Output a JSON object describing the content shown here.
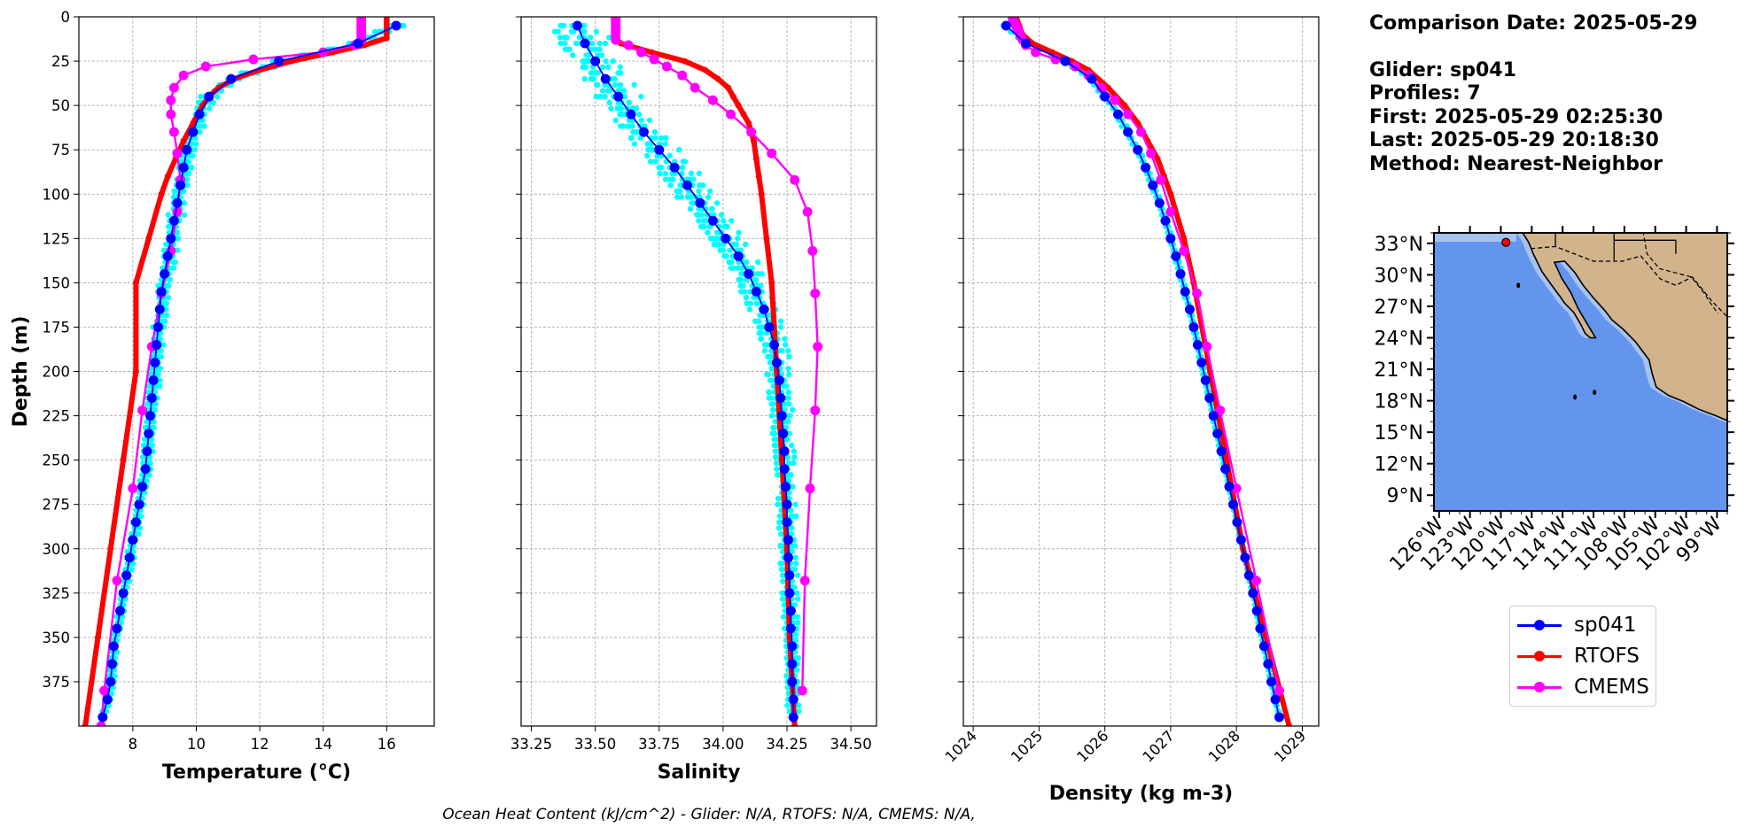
{
  "info": {
    "comparison_date": "Comparison Date: 2025-05-29",
    "glider": "Glider: sp041",
    "profiles": "Profiles: 7",
    "first": "First: 2025-05-29 02:25:30",
    "last": "Last: 2025-05-29 20:18:30",
    "method": "Method: Nearest-Neighbor"
  },
  "footer": "Ocean Heat Content (kJ/cm^2) - Glider: N/A,  RTOFS: N/A,  CMEMS: N/A,",
  "colors": {
    "glider": "#0000ff",
    "glider_profiles": "#00ffff",
    "rtofs": "#ff0000",
    "cmems": "#ff00ff",
    "ocean": "#6495ed",
    "land": "#d2b48c",
    "shelf": "#a6c3f0"
  },
  "legend": [
    {
      "label": "sp041",
      "color": "#0000ff"
    },
    {
      "label": "RTOFS",
      "color": "#ff0000"
    },
    {
      "label": "CMEMS",
      "color": "#ff00ff"
    }
  ],
  "chart_data": [
    {
      "type": "line",
      "xlabel": "Temperature ($^{o}C$)",
      "xlabel_display": "Temperature (°C)",
      "ylabel": "Depth (m)",
      "xlim": [
        6.3,
        17.5
      ],
      "ylim": [
        400,
        0
      ],
      "xticks": [
        8,
        10,
        12,
        14,
        16
      ],
      "yticks": [
        0,
        25,
        50,
        75,
        100,
        125,
        150,
        175,
        200,
        225,
        250,
        275,
        300,
        325,
        350,
        375
      ],
      "grid": true,
      "series": [
        {
          "name": "sp041",
          "depth": [
            5,
            15,
            25,
            35,
            45,
            55,
            65,
            75,
            85,
            95,
            105,
            115,
            125,
            135,
            145,
            155,
            165,
            175,
            185,
            195,
            205,
            215,
            225,
            235,
            245,
            255,
            265,
            275,
            285,
            295,
            305,
            315,
            325,
            335,
            345,
            355,
            365,
            375,
            385,
            395
          ],
          "values": [
            16.3,
            15.1,
            12.6,
            11.1,
            10.4,
            10.1,
            9.9,
            9.7,
            9.6,
            9.5,
            9.4,
            9.3,
            9.2,
            9.1,
            9.0,
            8.9,
            8.85,
            8.8,
            8.75,
            8.7,
            8.65,
            8.6,
            8.55,
            8.5,
            8.45,
            8.4,
            8.3,
            8.2,
            8.1,
            8.0,
            7.9,
            7.8,
            7.7,
            7.6,
            7.5,
            7.4,
            7.35,
            7.3,
            7.2,
            7.05
          ]
        },
        {
          "name": "RTOFS",
          "depth": [
            0,
            2,
            4,
            6,
            8,
            10,
            12,
            16,
            20,
            25,
            30,
            35,
            40,
            45,
            50,
            60,
            70,
            80,
            90,
            100,
            125,
            150,
            200,
            250,
            300,
            350,
            400
          ],
          "values": [
            16.0,
            16.0,
            16.0,
            16.0,
            16.0,
            16.0,
            16.0,
            15.3,
            14.3,
            13.0,
            12.0,
            11.2,
            10.7,
            10.4,
            10.2,
            9.9,
            9.6,
            9.35,
            9.1,
            8.9,
            8.5,
            8.1,
            8.1,
            7.7,
            7.3,
            6.9,
            6.5
          ]
        },
        {
          "name": "CMEMS",
          "depth": [
            1,
            3,
            5,
            7,
            9,
            11,
            13,
            16,
            20,
            24,
            28,
            33,
            40,
            47,
            55,
            65,
            77,
            92,
            110,
            132,
            156,
            186,
            222,
            266,
            318,
            380,
            400
          ],
          "values": [
            15.2,
            15.2,
            15.2,
            15.2,
            15.2,
            15.2,
            15.2,
            15.0,
            14.0,
            11.8,
            10.3,
            9.6,
            9.3,
            9.2,
            9.2,
            9.3,
            9.4,
            9.5,
            9.4,
            9.2,
            8.9,
            8.6,
            8.3,
            8.0,
            7.5,
            7.1,
            7.0
          ]
        }
      ]
    },
    {
      "type": "line",
      "xlabel": "Salinity",
      "xlim": [
        33.21,
        34.6
      ],
      "ylim": [
        400,
        0
      ],
      "xticks": [
        33.25,
        33.5,
        33.75,
        34.0,
        34.25,
        34.5
      ],
      "xtick_labels": [
        "33.25",
        "33.50",
        "33.75",
        "34.00",
        "34.25",
        "34.50"
      ],
      "grid": true,
      "series": [
        {
          "name": "sp041",
          "depth": [
            5,
            15,
            25,
            35,
            45,
            55,
            65,
            75,
            85,
            95,
            105,
            115,
            125,
            135,
            145,
            155,
            165,
            175,
            185,
            195,
            205,
            215,
            225,
            235,
            245,
            255,
            265,
            275,
            285,
            295,
            305,
            315,
            325,
            335,
            345,
            355,
            365,
            375,
            385,
            395
          ],
          "values": [
            33.43,
            33.46,
            33.5,
            33.54,
            33.59,
            33.64,
            33.69,
            33.75,
            33.81,
            33.86,
            33.91,
            33.96,
            34.01,
            34.06,
            34.1,
            34.13,
            34.16,
            34.18,
            34.2,
            34.21,
            34.22,
            34.225,
            34.23,
            34.235,
            34.24,
            34.24,
            34.245,
            34.25,
            34.25,
            34.255,
            34.255,
            34.26,
            34.26,
            34.265,
            34.265,
            34.27,
            34.27,
            34.27,
            34.275,
            34.275
          ]
        },
        {
          "name": "RTOFS",
          "depth": [
            0,
            2,
            4,
            6,
            8,
            10,
            12,
            15,
            20,
            25,
            30,
            35,
            40,
            45,
            50,
            55,
            60,
            70,
            80,
            90,
            100,
            125,
            150,
            200,
            250,
            300,
            350,
            400
          ],
          "values": [
            33.58,
            33.58,
            33.58,
            33.58,
            33.58,
            33.58,
            33.58,
            33.6,
            33.72,
            33.85,
            33.93,
            33.98,
            34.02,
            34.04,
            34.06,
            34.08,
            34.1,
            34.12,
            34.13,
            34.14,
            34.15,
            34.17,
            34.19,
            34.21,
            34.23,
            34.25,
            34.26,
            34.28
          ]
        },
        {
          "name": "CMEMS",
          "depth": [
            1,
            3,
            5,
            7,
            9,
            11,
            13,
            16,
            20,
            24,
            28,
            33,
            40,
            47,
            55,
            65,
            77,
            92,
            110,
            132,
            156,
            186,
            222,
            266,
            318,
            380
          ],
          "values": [
            33.58,
            33.58,
            33.58,
            33.58,
            33.58,
            33.58,
            33.58,
            33.63,
            33.68,
            33.73,
            33.78,
            33.84,
            33.89,
            33.96,
            34.03,
            34.11,
            34.19,
            34.28,
            34.33,
            34.35,
            34.36,
            34.37,
            34.36,
            34.34,
            34.32,
            34.31
          ]
        }
      ]
    },
    {
      "type": "line",
      "xlabel": "Density (kg m-3)",
      "xlim": [
        1023.85,
        1029.25
      ],
      "ylim": [
        400,
        0
      ],
      "xticks": [
        1024,
        1025,
        1026,
        1027,
        1028,
        1029
      ],
      "grid": true,
      "series": [
        {
          "name": "sp041",
          "depth": [
            5,
            15,
            25,
            35,
            45,
            55,
            65,
            75,
            85,
            95,
            105,
            115,
            125,
            135,
            145,
            155,
            165,
            175,
            185,
            195,
            205,
            215,
            225,
            235,
            245,
            255,
            265,
            275,
            285,
            295,
            305,
            315,
            325,
            335,
            345,
            355,
            365,
            375,
            385,
            395
          ],
          "values": [
            1024.5,
            1024.8,
            1025.4,
            1025.8,
            1026.0,
            1026.2,
            1026.35,
            1026.5,
            1026.62,
            1026.73,
            1026.83,
            1026.92,
            1027.0,
            1027.08,
            1027.15,
            1027.22,
            1027.29,
            1027.35,
            1027.41,
            1027.47,
            1027.53,
            1027.59,
            1027.65,
            1027.71,
            1027.77,
            1027.83,
            1027.89,
            1027.95,
            1028.01,
            1028.07,
            1028.13,
            1028.19,
            1028.25,
            1028.31,
            1028.36,
            1028.42,
            1028.48,
            1028.53,
            1028.59,
            1028.65
          ]
        },
        {
          "name": "RTOFS",
          "depth": [
            0,
            5,
            10,
            15,
            20,
            25,
            30,
            40,
            50,
            60,
            70,
            80,
            90,
            100,
            125,
            150,
            200,
            250,
            300,
            350,
            400
          ],
          "values": [
            1024.65,
            1024.7,
            1024.75,
            1024.9,
            1025.2,
            1025.5,
            1025.75,
            1026.05,
            1026.3,
            1026.5,
            1026.65,
            1026.8,
            1026.9,
            1027.0,
            1027.2,
            1027.35,
            1027.6,
            1027.85,
            1028.1,
            1028.45,
            1028.8
          ]
        },
        {
          "name": "CMEMS",
          "depth": [
            1,
            3,
            5,
            7,
            9,
            11,
            13,
            16,
            20,
            24,
            28,
            33,
            40,
            47,
            55,
            65,
            77,
            92,
            110,
            132,
            156,
            186,
            222,
            266,
            318,
            380
          ],
          "values": [
            1024.6,
            1024.62,
            1024.65,
            1024.68,
            1024.7,
            1024.72,
            1024.75,
            1024.8,
            1024.95,
            1025.25,
            1025.55,
            1025.75,
            1025.95,
            1026.15,
            1026.35,
            1026.55,
            1026.7,
            1026.85,
            1027.0,
            1027.2,
            1027.4,
            1027.55,
            1027.75,
            1028.0,
            1028.3,
            1028.65
          ]
        }
      ]
    },
    {
      "type": "map",
      "lat_ticks": [
        "33°N",
        "30°N",
        "27°N",
        "24°N",
        "21°N",
        "18°N",
        "15°N",
        "12°N",
        "9°N"
      ],
      "lon_ticks": [
        "126°W",
        "123°W",
        "120°W",
        "117°W",
        "114°W",
        "111°W",
        "108°W",
        "105°W",
        "102°W",
        "99°W"
      ],
      "lat_range": [
        7.5,
        34.0
      ],
      "lon_range": [
        -126.5,
        -98.0
      ],
      "marker": {
        "lon": -119.5,
        "lat": 33.1,
        "color": "#ff0000"
      }
    }
  ]
}
